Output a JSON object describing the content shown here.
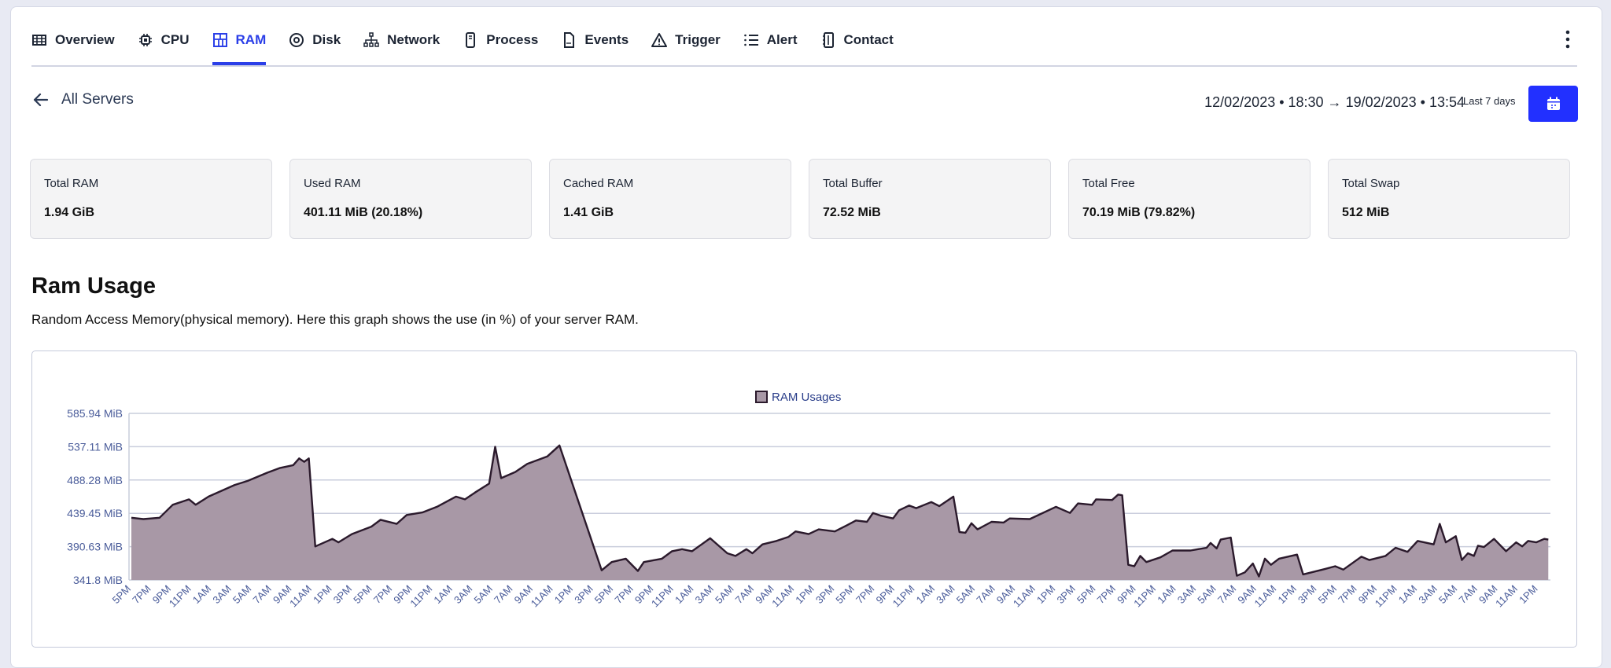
{
  "nav": {
    "tabs": [
      {
        "label": "Overview",
        "icon": "table-icon"
      },
      {
        "label": "CPU",
        "icon": "cpu-icon"
      },
      {
        "label": "RAM",
        "icon": "ram-icon",
        "active": true
      },
      {
        "label": "Disk",
        "icon": "disk-icon"
      },
      {
        "label": "Network",
        "icon": "network-icon"
      },
      {
        "label": "Process",
        "icon": "process-icon"
      },
      {
        "label": "Events",
        "icon": "document-icon"
      },
      {
        "label": "Trigger",
        "icon": "warning-icon"
      },
      {
        "label": "Alert",
        "icon": "list-icon"
      },
      {
        "label": "Contact",
        "icon": "contact-book-icon"
      }
    ],
    "accent": "#2b3fe8"
  },
  "back_label": "All Servers",
  "date_range": "12/02/2023 • 18:30 → 19/02/2023 • 13:54",
  "preset": "Last 7 days",
  "stats": [
    {
      "label": "Total RAM",
      "value": "1.94 GiB"
    },
    {
      "label": "Used RAM",
      "value": "401.11 MiB (20.18%)"
    },
    {
      "label": "Cached RAM",
      "value": "1.41 GiB"
    },
    {
      "label": "Total Buffer",
      "value": "72.52 MiB"
    },
    {
      "label": "Total Free",
      "value": "70.19 MiB (79.82%)"
    },
    {
      "label": "Total Swap",
      "value": "512 MiB"
    }
  ],
  "section": {
    "title": "Ram Usage",
    "description": "Random Access Memory(physical memory). Here this graph shows the use (in %) of your server RAM."
  },
  "chart_data": {
    "type": "area",
    "legend": "RAM Usages",
    "legend_position": "top-center",
    "fill_color": "#a898a6",
    "line_color": "#2b1a2c",
    "ylim": [
      341.8,
      585.94
    ],
    "y_ticks": [
      "585.94 MiB",
      "537.11 MiB",
      "488.28 MiB",
      "439.45 MiB",
      "390.63 MiB",
      "341.8 MiB"
    ],
    "y_tick_values": [
      585.94,
      537.11,
      488.28,
      439.45,
      390.63,
      341.8
    ],
    "x_labels": [
      "5PM",
      "7PM",
      "9PM",
      "11PM",
      "1AM",
      "3AM",
      "5AM",
      "7AM",
      "9AM",
      "11AM",
      "1PM",
      "3PM",
      "5PM",
      "7PM",
      "9PM",
      "11PM",
      "1AM",
      "3AM",
      "5AM",
      "7AM",
      "9AM",
      "11AM",
      "1PM",
      "3PM",
      "5PM",
      "7PM",
      "9PM",
      "11PM",
      "1AM",
      "3AM",
      "5AM",
      "7AM",
      "9AM",
      "11AM",
      "1PM",
      "3PM",
      "5PM",
      "7PM",
      "9PM",
      "11PM",
      "1AM",
      "3AM",
      "5AM",
      "7AM",
      "9AM",
      "11AM",
      "1PM",
      "3PM",
      "5PM",
      "7PM",
      "9PM",
      "11PM",
      "1AM",
      "3AM",
      "5AM",
      "7AM",
      "9AM",
      "11AM",
      "1PM",
      "3PM",
      "5PM",
      "7PM",
      "9PM",
      "11PM",
      "1AM",
      "3AM",
      "5AM",
      "7AM",
      "9AM",
      "11AM",
      "1PM"
    ],
    "points_x_unit": "x label index (2-hour steps)",
    "points": [
      [
        0,
        433
      ],
      [
        0.6,
        431
      ],
      [
        1.4,
        433
      ],
      [
        2.06,
        452
      ],
      [
        2.87,
        460
      ],
      [
        3.2,
        452
      ],
      [
        3.84,
        464
      ],
      [
        5.14,
        481
      ],
      [
        5.79,
        487
      ],
      [
        6.76,
        499
      ],
      [
        7.4,
        506
      ],
      [
        8.05,
        510
      ],
      [
        8.35,
        520
      ],
      [
        8.6,
        515
      ],
      [
        8.83,
        520
      ],
      [
        9.15,
        391
      ],
      [
        10.0,
        402
      ],
      [
        10.3,
        397
      ],
      [
        10.97,
        409
      ],
      [
        11.94,
        420
      ],
      [
        12.4,
        430
      ],
      [
        13.2,
        424
      ],
      [
        13.7,
        437
      ],
      [
        14.5,
        441
      ],
      [
        15.2,
        449
      ],
      [
        16.15,
        464
      ],
      [
        16.6,
        460
      ],
      [
        17.1,
        470
      ],
      [
        17.8,
        483
      ],
      [
        18.1,
        537
      ],
      [
        18.4,
        491
      ],
      [
        19.1,
        500
      ],
      [
        19.7,
        512
      ],
      [
        20.7,
        523
      ],
      [
        21.3,
        539
      ],
      [
        23.4,
        356
      ],
      [
        23.9,
        368
      ],
      [
        24.6,
        373
      ],
      [
        25.2,
        355
      ],
      [
        25.5,
        368
      ],
      [
        26.4,
        373
      ],
      [
        26.9,
        384
      ],
      [
        27.4,
        387
      ],
      [
        27.9,
        384
      ],
      [
        28.8,
        403
      ],
      [
        29.65,
        381
      ],
      [
        30.06,
        377
      ],
      [
        30.6,
        387
      ],
      [
        30.9,
        381
      ],
      [
        31.4,
        394
      ],
      [
        32.1,
        399
      ],
      [
        32.7,
        405
      ],
      [
        33.05,
        413
      ],
      [
        33.7,
        409
      ],
      [
        34.2,
        416
      ],
      [
        35.0,
        413
      ],
      [
        35.6,
        422
      ],
      [
        36.05,
        429
      ],
      [
        36.6,
        427
      ],
      [
        36.9,
        440
      ],
      [
        37.3,
        436
      ],
      [
        37.9,
        432
      ],
      [
        38.2,
        444
      ],
      [
        38.7,
        451
      ],
      [
        39.05,
        447
      ],
      [
        39.8,
        456
      ],
      [
        40.2,
        450
      ],
      [
        40.9,
        464
      ],
      [
        41.2,
        412
      ],
      [
        41.5,
        411
      ],
      [
        41.8,
        425
      ],
      [
        42.1,
        416
      ],
      [
        42.8,
        427
      ],
      [
        43.4,
        426
      ],
      [
        43.7,
        432
      ],
      [
        44.7,
        431
      ],
      [
        45.2,
        438
      ],
      [
        46.0,
        449
      ],
      [
        46.7,
        440
      ],
      [
        47.1,
        454
      ],
      [
        47.8,
        452
      ],
      [
        48.0,
        460
      ],
      [
        48.8,
        459
      ],
      [
        49.1,
        467
      ],
      [
        49.3,
        466
      ],
      [
        49.6,
        364
      ],
      [
        49.9,
        362
      ],
      [
        50.2,
        377
      ],
      [
        50.5,
        368
      ],
      [
        51.2,
        375
      ],
      [
        51.8,
        385
      ],
      [
        52.7,
        385
      ],
      [
        53.5,
        389
      ],
      [
        53.7,
        396
      ],
      [
        54.0,
        388
      ],
      [
        54.2,
        401
      ],
      [
        54.7,
        404
      ],
      [
        55.0,
        348
      ],
      [
        55.4,
        353
      ],
      [
        55.8,
        366
      ],
      [
        56.1,
        347
      ],
      [
        56.4,
        373
      ],
      [
        56.7,
        364
      ],
      [
        57.1,
        373
      ],
      [
        58.0,
        379
      ],
      [
        58.3,
        350
      ],
      [
        59.4,
        358
      ],
      [
        59.9,
        362
      ],
      [
        60.3,
        357
      ],
      [
        61.2,
        376
      ],
      [
        61.6,
        371
      ],
      [
        62.4,
        377
      ],
      [
        62.9,
        389
      ],
      [
        63.5,
        383
      ],
      [
        64.0,
        399
      ],
      [
        64.8,
        394
      ],
      [
        65.1,
        424
      ],
      [
        65.4,
        397
      ],
      [
        65.9,
        406
      ],
      [
        66.2,
        371
      ],
      [
        66.5,
        381
      ],
      [
        66.8,
        377
      ],
      [
        67.0,
        392
      ],
      [
        67.3,
        390
      ],
      [
        67.8,
        402
      ],
      [
        68.4,
        384
      ],
      [
        68.9,
        397
      ],
      [
        69.2,
        391
      ],
      [
        69.5,
        399
      ],
      [
        69.9,
        397
      ],
      [
        70.3,
        402
      ],
      [
        70.5,
        401
      ]
    ]
  }
}
